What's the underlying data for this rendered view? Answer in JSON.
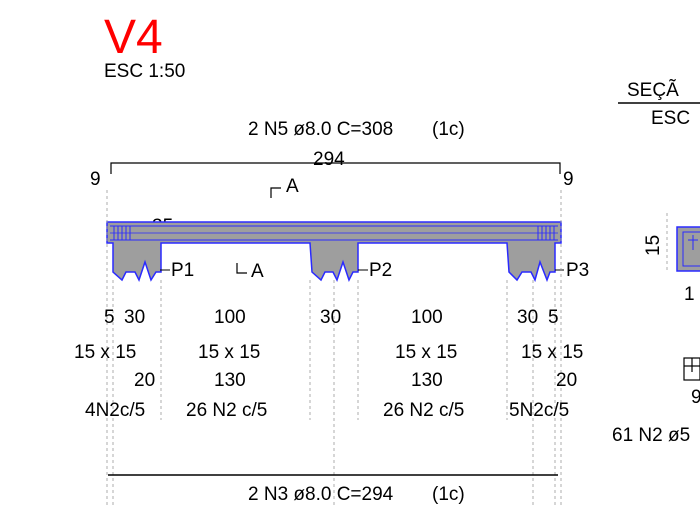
{
  "drawing": {
    "title": "V4",
    "scale": "ESC 1:50",
    "section_title": "SEÇÃ",
    "section_scale": "ESC",
    "top_bar_label": "2 N5 ø8.0 C=308",
    "top_bar_layer": "(1c)",
    "top_bar_length": "294",
    "hook_left": "9",
    "hook_right": "9",
    "level_value": "35",
    "cut_mark": "A",
    "support_labels": [
      "P1",
      "P2",
      "P3"
    ],
    "span_dims": [
      "5",
      "30",
      "100",
      "30",
      "100",
      "30",
      "5"
    ],
    "section_dims": [
      "15 x 15",
      "15 x 15",
      "15 x 15",
      "15 x 15"
    ],
    "stirrup_lengths": [
      "20",
      "130",
      "130",
      "20"
    ],
    "stirrup_specs": [
      "4N2c/5",
      "26 N2 c/5",
      "26 N2 c/5",
      "5N2c/5"
    ],
    "bottom_bar_label": "2 N3 ø8.0 C=294",
    "bottom_bar_layer": "(1c)",
    "section_height": "15",
    "section_partial_dim": "1",
    "section_partial_9": "9",
    "section_stirrups": "61 N2 ø5",
    "colors": {
      "title": "#ff0000",
      "beam_fill": "#9e9e9e",
      "beam_stroke": "#2a2aff",
      "line": "#000000"
    }
  }
}
